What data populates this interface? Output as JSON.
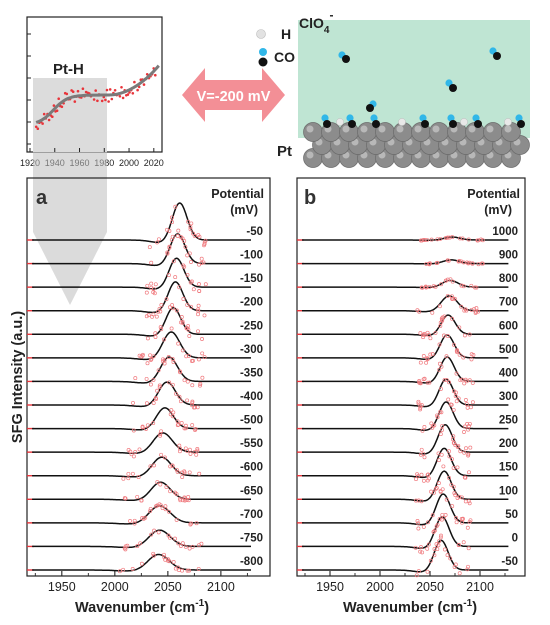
{
  "inset": {
    "label": "Pt-H",
    "x_ticks": [
      "1920",
      "1940",
      "1960",
      "1980",
      "2000",
      "2020"
    ],
    "x_range": [
      1920,
      2025
    ]
  },
  "arrow": {
    "label": "V=-200 mV"
  },
  "schematic": {
    "labels": {
      "h": "H",
      "co": "CO",
      "clo4": "ClO",
      "clo4_sub": "4",
      "clo4_sup": "-",
      "pt": "Pt"
    },
    "colors": {
      "solution": "#bfe5d3",
      "h_atom": "#e8e8e8",
      "co_c": "#111111",
      "co_o": "#31b7e8",
      "pt": "#8c8c8c",
      "arrow": "#f38f96"
    }
  },
  "panel_a": {
    "letter": "a",
    "legend_title_1": "Potential",
    "legend_title_2": "(mV)",
    "potentials": [
      "-50",
      "-100",
      "-150",
      "-200",
      "-250",
      "-300",
      "-350",
      "-400",
      "-500",
      "-550",
      "-600",
      "-650",
      "-700",
      "-750",
      "-800"
    ]
  },
  "panel_b": {
    "letter": "b",
    "legend_title_1": "Potential",
    "legend_title_2": "(mV)",
    "potentials": [
      "1000",
      "900",
      "800",
      "700",
      "600",
      "500",
      "400",
      "300",
      "250",
      "200",
      "150",
      "100",
      "50",
      "0",
      "-50"
    ]
  },
  "axes": {
    "ylabel": "SFG Intensity (a.u.)",
    "xlabel_main": "Wavenumber (cm",
    "xlabel_sup": "-1",
    "xlabel_end": ")",
    "x_ticks": [
      "1950",
      "2000",
      "2050",
      "2100"
    ]
  },
  "chart_data": [
    {
      "type": "line",
      "panel": "a",
      "x_range": [
        1920,
        2135
      ],
      "x_ticks": [
        1950,
        2000,
        2050,
        2100
      ],
      "ylabel": "SFG Intensity (a.u.)",
      "xlabel": "Wavenumber (cm-1)",
      "series": [
        {
          "potential_mV": -50,
          "peak_cm": 2061,
          "width_cm": 7,
          "relative_height": 1.0
        },
        {
          "potential_mV": -100,
          "peak_cm": 2059,
          "width_cm": 7,
          "relative_height": 0.8
        },
        {
          "potential_mV": -150,
          "peak_cm": 2058,
          "width_cm": 7,
          "relative_height": 0.78
        },
        {
          "potential_mV": -200,
          "peak_cm": 2057,
          "width_cm": 7,
          "relative_height": 0.78
        },
        {
          "potential_mV": -250,
          "peak_cm": 2055,
          "width_cm": 7,
          "relative_height": 0.72
        },
        {
          "potential_mV": -300,
          "peak_cm": 2053,
          "width_cm": 8,
          "relative_height": 0.7
        },
        {
          "potential_mV": -350,
          "peak_cm": 2051,
          "width_cm": 8,
          "relative_height": 0.66
        },
        {
          "potential_mV": -400,
          "peak_cm": 2049,
          "width_cm": 8,
          "relative_height": 0.62
        },
        {
          "potential_mV": -500,
          "peak_cm": 2047,
          "width_cm": 8,
          "relative_height": 0.56
        },
        {
          "potential_mV": -550,
          "peak_cm": 2045,
          "width_cm": 9,
          "relative_height": 0.52
        },
        {
          "potential_mV": -600,
          "peak_cm": 2044,
          "width_cm": 9,
          "relative_height": 0.5
        },
        {
          "potential_mV": -650,
          "peak_cm": 2043,
          "width_cm": 9,
          "relative_height": 0.46
        },
        {
          "potential_mV": -700,
          "peak_cm": 2042,
          "width_cm": 10,
          "relative_height": 0.46
        },
        {
          "potential_mV": -750,
          "peak_cm": 2042,
          "width_cm": 10,
          "relative_height": 0.44
        },
        {
          "potential_mV": -800,
          "peak_cm": 2041,
          "width_cm": 10,
          "relative_height": 0.42
        }
      ]
    },
    {
      "type": "line",
      "panel": "b",
      "x_range": [
        1920,
        2135
      ],
      "x_ticks": [
        1950,
        2000,
        2050,
        2100
      ],
      "ylabel": "",
      "xlabel": "Wavenumber (cm-1)",
      "series": [
        {
          "potential_mV": 1000,
          "peak_cm": 2072,
          "width_cm": 8,
          "relative_height": 0.08
        },
        {
          "potential_mV": 900,
          "peak_cm": 2071,
          "width_cm": 8,
          "relative_height": 0.1
        },
        {
          "potential_mV": 800,
          "peak_cm": 2070,
          "width_cm": 8,
          "relative_height": 0.18
        },
        {
          "potential_mV": 700,
          "peak_cm": 2069,
          "width_cm": 8,
          "relative_height": 0.4
        },
        {
          "potential_mV": 600,
          "peak_cm": 2068,
          "width_cm": 7,
          "relative_height": 0.52
        },
        {
          "potential_mV": 500,
          "peak_cm": 2067,
          "width_cm": 7,
          "relative_height": 0.62
        },
        {
          "potential_mV": 400,
          "peak_cm": 2067,
          "width_cm": 7,
          "relative_height": 0.66
        },
        {
          "potential_mV": 300,
          "peak_cm": 2066,
          "width_cm": 7,
          "relative_height": 0.7
        },
        {
          "potential_mV": 250,
          "peak_cm": 2066,
          "width_cm": 7,
          "relative_height": 0.72
        },
        {
          "potential_mV": 200,
          "peak_cm": 2065,
          "width_cm": 7,
          "relative_height": 0.74
        },
        {
          "potential_mV": 150,
          "peak_cm": 2064,
          "width_cm": 7,
          "relative_height": 0.74
        },
        {
          "potential_mV": 100,
          "peak_cm": 2064,
          "width_cm": 7,
          "relative_height": 0.76
        },
        {
          "potential_mV": 50,
          "peak_cm": 2063,
          "width_cm": 7,
          "relative_height": 0.78
        },
        {
          "potential_mV": 0,
          "peak_cm": 2062,
          "width_cm": 7,
          "relative_height": 0.8
        },
        {
          "potential_mV": -50,
          "peak_cm": 2061,
          "width_cm": 7,
          "relative_height": 0.8
        }
      ]
    },
    {
      "type": "scatter",
      "panel": "inset",
      "x_range": [
        1920,
        2025
      ],
      "x_ticks": [
        1920,
        1940,
        1960,
        1980,
        2000,
        2020
      ],
      "series": [
        {
          "name": "",
          "color": "#e8343a"
        },
        {
          "name": "",
          "color": "#7a7a7a",
          "type": "line"
        }
      ]
    }
  ]
}
